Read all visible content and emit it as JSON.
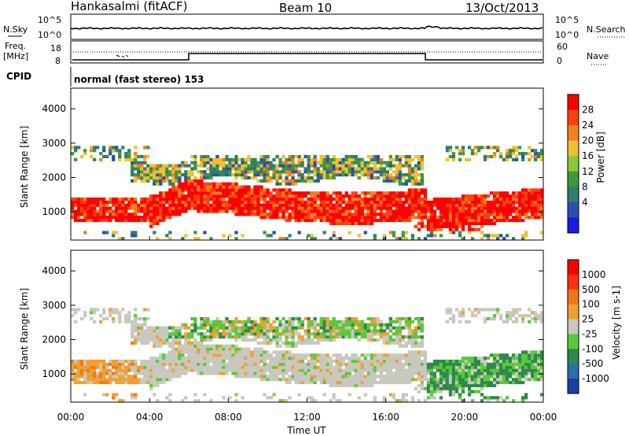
{
  "header": {
    "title": "Hankasalmi (fitACF)",
    "beam": "Beam 10",
    "date": "13/Oct/2013"
  },
  "noise_panel": {
    "left_label": "N.Sky",
    "right_label": "N.Search",
    "ticks": [
      "10^5",
      "10^0"
    ]
  },
  "freq_panel": {
    "left_label_1": "Freq.",
    "left_label_2": "[MHz]",
    "left_ticks": [
      "18",
      "8"
    ],
    "right_label": "Nave",
    "right_ticks": [
      "60",
      "0"
    ]
  },
  "cpid": {
    "label": "CPID",
    "value": "normal (fast stereo) 153"
  },
  "x_axis": {
    "label": "Time UT",
    "ticks": [
      "00:00",
      "04:00",
      "08:00",
      "12:00",
      "16:00",
      "20:00",
      "00:00"
    ]
  },
  "chart_data": [
    {
      "type": "heatmap",
      "panel": "power",
      "ylabel": "Slant Range [km]",
      "ylim": [
        180,
        4600
      ],
      "yticks": [
        "4000",
        "3000",
        "2000",
        "1000"
      ],
      "xlim_hours": [
        0,
        24
      ],
      "colorbar": {
        "label": "Power [dB]",
        "ticks": [
          "28",
          "24",
          "20",
          "16",
          "12",
          "8",
          "4"
        ],
        "colors": [
          "#1a1ae6",
          "#2a4fb0",
          "#2f7d6e",
          "#3c9a3c",
          "#8cc83c",
          "#f0c030",
          "#f08020",
          "#ff4010",
          "#ff0000"
        ]
      }
    },
    {
      "type": "heatmap",
      "panel": "velocity",
      "ylabel": "Slant Range [km]",
      "ylim": [
        180,
        4600
      ],
      "yticks": [
        "4000",
        "3000",
        "2000",
        "1000"
      ],
      "xlim_hours": [
        0,
        24
      ],
      "colorbar": {
        "label": "Velocity [m s-1]",
        "ticks": [
          "1000",
          "500",
          "100",
          "25",
          "-25",
          "-100",
          "-500",
          "-1000"
        ],
        "colors": [
          "#1d3fa0",
          "#2a6fa8",
          "#2e8a4a",
          "#5cc83c",
          "#c8c8c0",
          "#f0a030",
          "#f07818",
          "#ff3010",
          "#ff0000"
        ]
      }
    }
  ]
}
